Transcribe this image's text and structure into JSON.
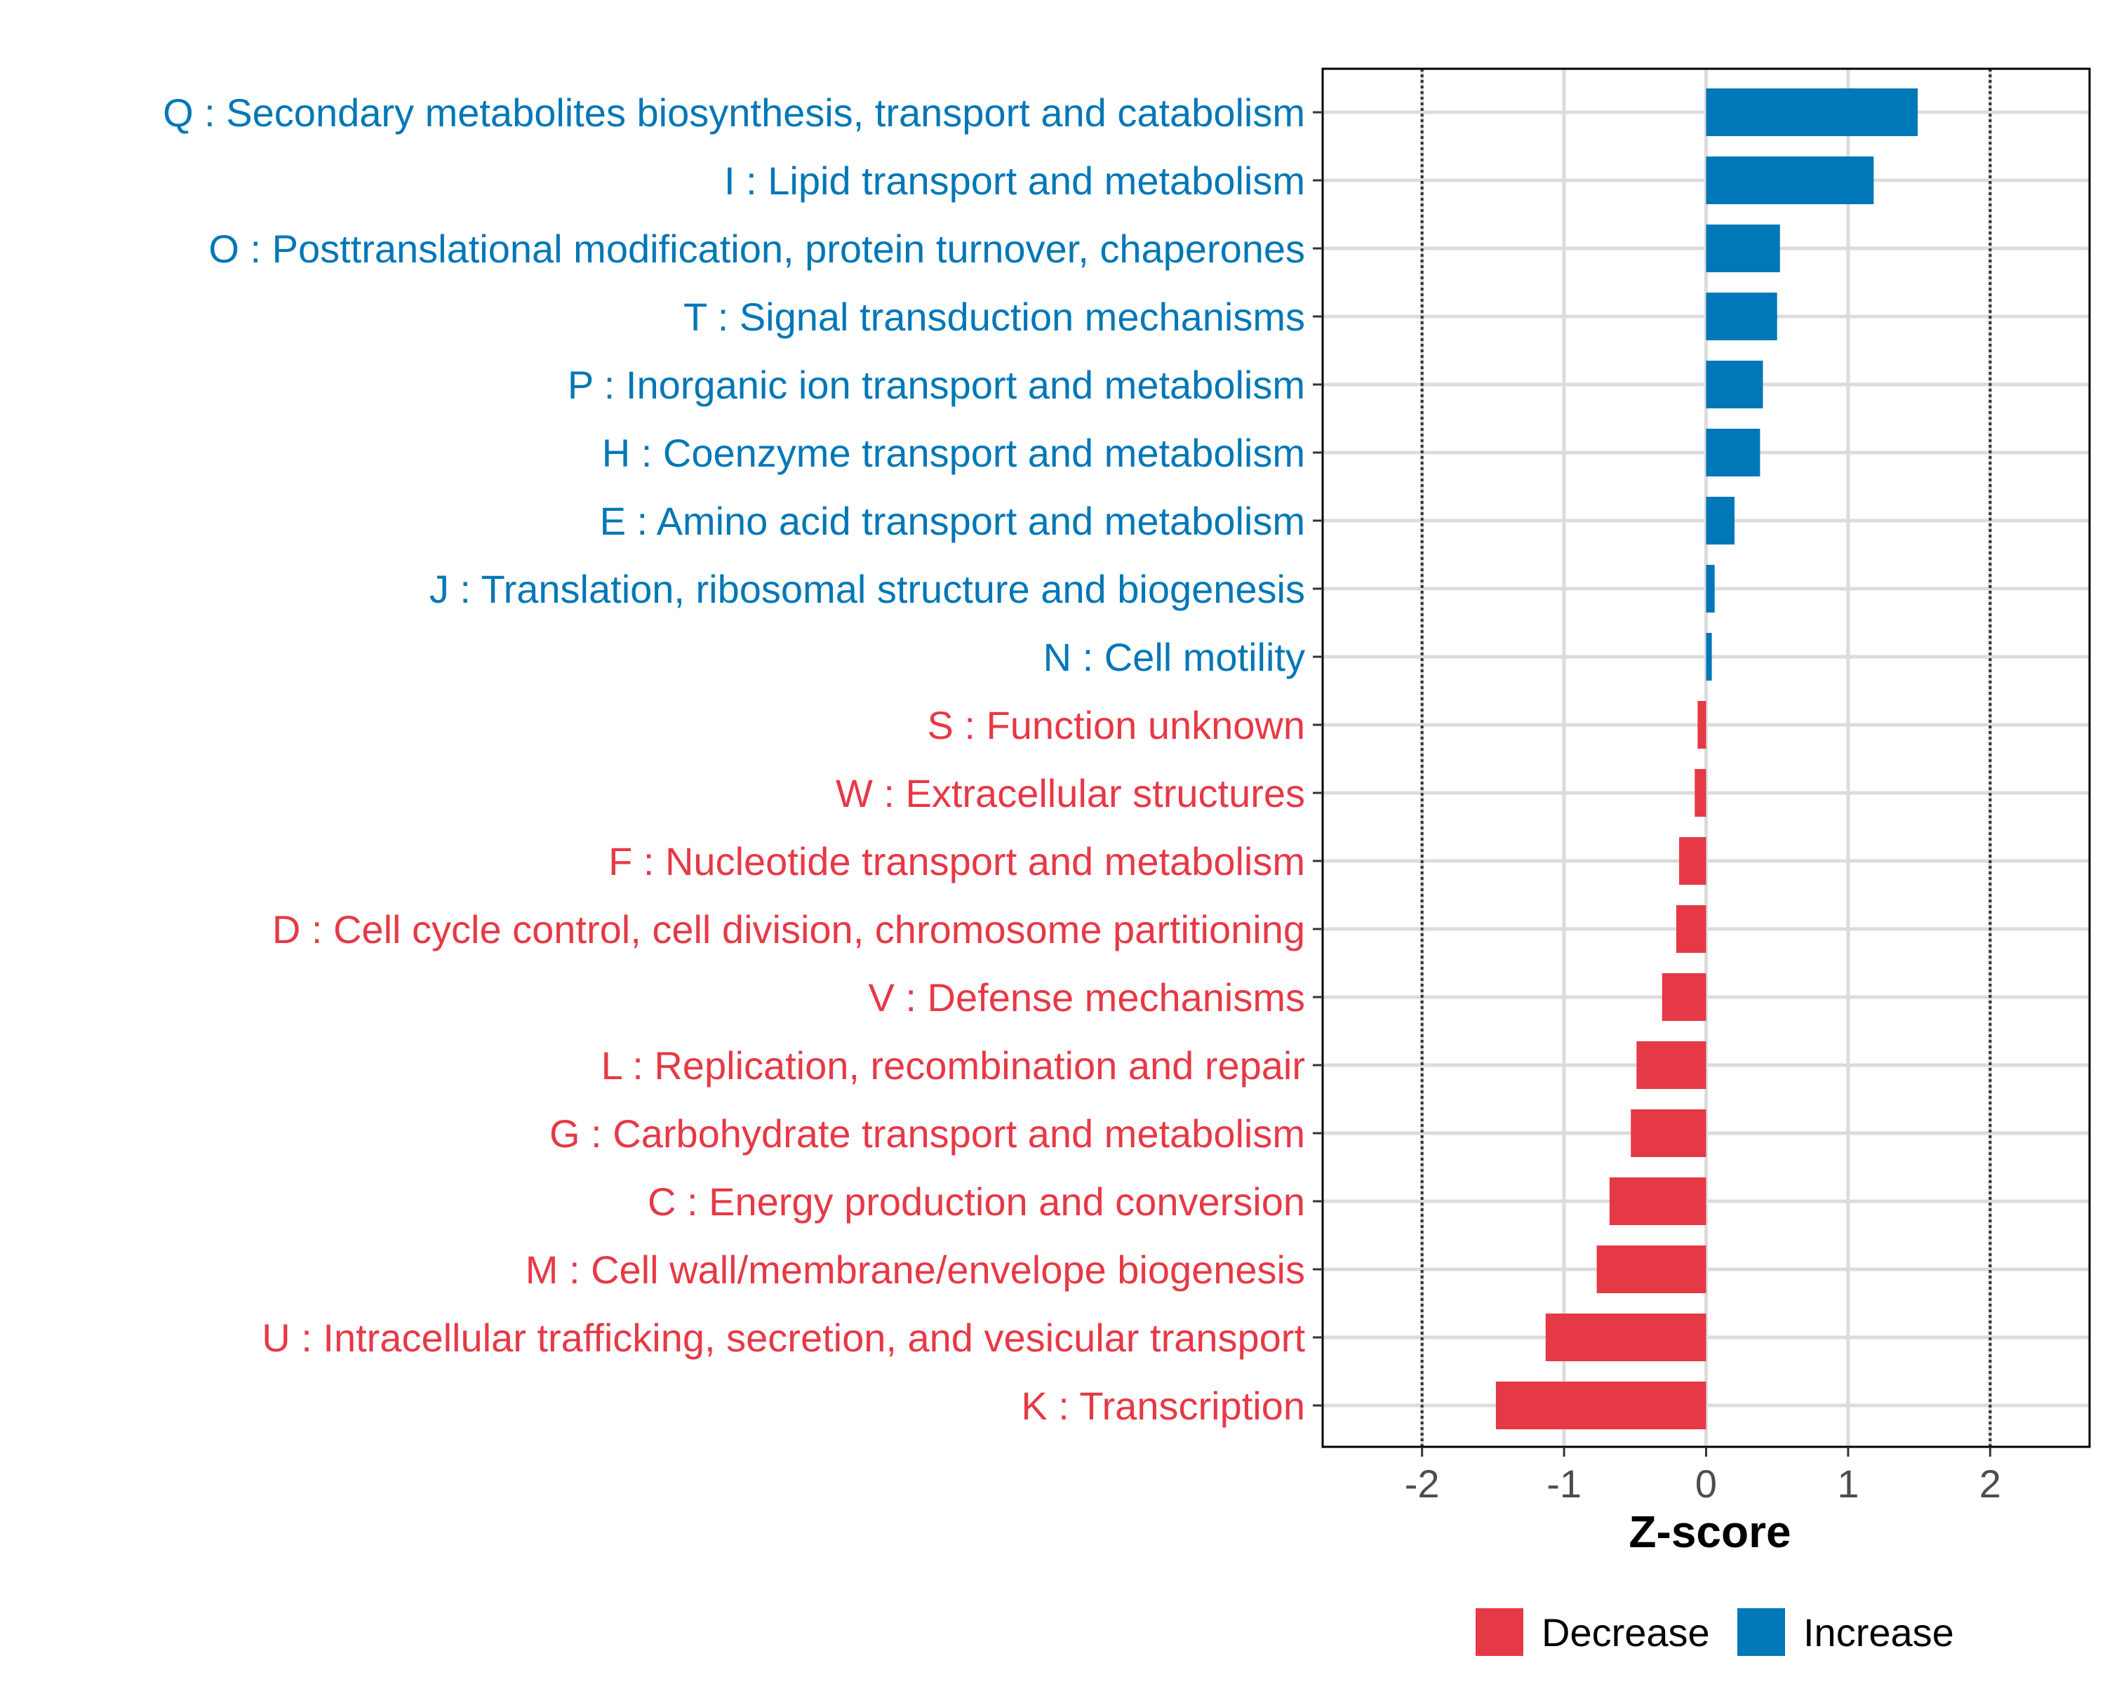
{
  "chart_data": {
    "type": "bar",
    "orientation": "horizontal",
    "title": "",
    "xlabel": "Z-score",
    "ylabel": "",
    "xlim": [
      -2.7,
      2.7
    ],
    "xticks": [
      -2,
      -1,
      0,
      1,
      2
    ],
    "xtick_labels": [
      "-2",
      "-1",
      "0",
      "1",
      "2"
    ],
    "reference_lines": [
      -2,
      2
    ],
    "grid": true,
    "colors": {
      "Decrease": "#e63946",
      "Increase": "#0077b6"
    },
    "legend": {
      "position": "bottom",
      "entries": [
        "Decrease",
        "Increase"
      ]
    },
    "categories": [
      "Q : Secondary metabolites biosynthesis, transport and catabolism",
      "I : Lipid transport and metabolism",
      "O : Posttranslational modification, protein turnover, chaperones",
      "T : Signal transduction mechanisms",
      "P : Inorganic ion transport and metabolism",
      "H : Coenzyme transport and metabolism",
      "E : Amino acid transport and metabolism",
      "J : Translation, ribosomal structure and biogenesis",
      "N : Cell motility",
      "S : Function unknown",
      "W : Extracellular structures",
      "F : Nucleotide transport and metabolism",
      "D : Cell cycle control, cell division, chromosome partitioning",
      "V : Defense mechanisms",
      "L : Replication, recombination and repair",
      "G : Carbohydrate transport and metabolism",
      "C : Energy production and conversion",
      "M : Cell wall/membrane/envelope biogenesis",
      "U : Intracellular trafficking, secretion, and vesicular transport",
      "K : Transcription"
    ],
    "values": [
      1.49,
      1.18,
      0.52,
      0.5,
      0.4,
      0.38,
      0.2,
      0.06,
      0.04,
      -0.06,
      -0.08,
      -0.19,
      -0.21,
      -0.31,
      -0.49,
      -0.53,
      -0.68,
      -0.77,
      -1.13,
      -1.48
    ],
    "groups": [
      "Increase",
      "Increase",
      "Increase",
      "Increase",
      "Increase",
      "Increase",
      "Increase",
      "Increase",
      "Increase",
      "Decrease",
      "Decrease",
      "Decrease",
      "Decrease",
      "Decrease",
      "Decrease",
      "Decrease",
      "Decrease",
      "Decrease",
      "Decrease",
      "Decrease"
    ]
  }
}
